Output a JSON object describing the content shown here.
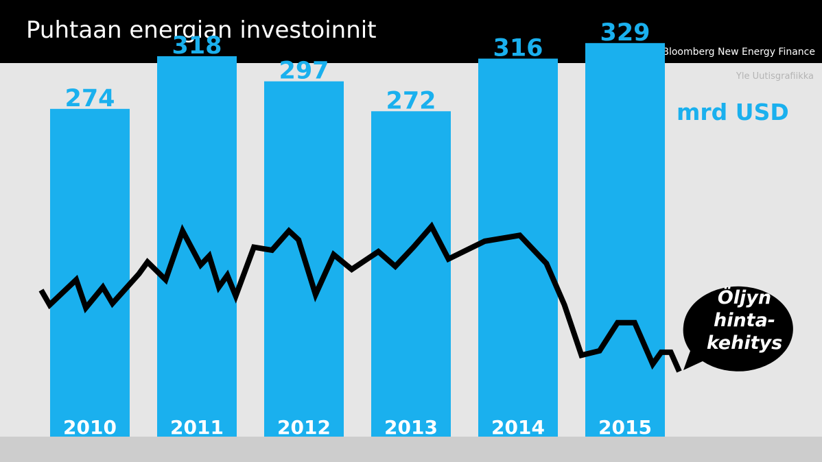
{
  "header": {
    "title": "Puhtaan energian investoinnit",
    "source": "Lähde: Bloomberg New Energy Finance"
  },
  "credit": "Yle Uutisgrafiikka",
  "colors": {
    "bar": "#1ab0ee",
    "header_bg": "#000000",
    "plot_bg": "#e6e6e6",
    "oil_line": "#000000"
  },
  "chart_data": {
    "type": "bar",
    "title": "Puhtaan energian investoinnit",
    "unit_label": "mrd USD",
    "categories": [
      "2010",
      "2011",
      "2012",
      "2013",
      "2014",
      "2015"
    ],
    "values": [
      274,
      318,
      297,
      272,
      316,
      329
    ],
    "data_labels": [
      "274",
      "318",
      "297",
      "272",
      "316",
      "329"
    ],
    "ylim": [
      0,
      365
    ],
    "grid": false,
    "overlay_line": {
      "label_lines": [
        "Öljyn",
        "hinta-",
        "kehitys"
      ],
      "x_range": [
        2010.0,
        2016.0
      ],
      "points": [
        [
          2010.0,
          0.55
        ],
        [
          2010.08,
          0.45
        ],
        [
          2010.33,
          0.62
        ],
        [
          2010.42,
          0.43
        ],
        [
          2010.58,
          0.57
        ],
        [
          2010.67,
          0.46
        ],
        [
          2010.92,
          0.66
        ],
        [
          2011.0,
          0.74
        ],
        [
          2011.17,
          0.62
        ],
        [
          2011.33,
          0.95
        ],
        [
          2011.5,
          0.72
        ],
        [
          2011.58,
          0.78
        ],
        [
          2011.67,
          0.57
        ],
        [
          2011.75,
          0.65
        ],
        [
          2011.83,
          0.51
        ],
        [
          2012.0,
          0.84
        ],
        [
          2012.17,
          0.82
        ],
        [
          2012.33,
          0.95
        ],
        [
          2012.42,
          0.89
        ],
        [
          2012.58,
          0.52
        ],
        [
          2012.75,
          0.79
        ],
        [
          2012.92,
          0.69
        ],
        [
          2013.17,
          0.81
        ],
        [
          2013.33,
          0.71
        ],
        [
          2013.5,
          0.84
        ],
        [
          2013.67,
          0.98
        ],
        [
          2013.83,
          0.76
        ],
        [
          2014.17,
          0.88
        ],
        [
          2014.5,
          0.92
        ],
        [
          2014.75,
          0.73
        ],
        [
          2014.92,
          0.45
        ],
        [
          2015.08,
          0.11
        ],
        [
          2015.25,
          0.14
        ],
        [
          2015.42,
          0.33
        ],
        [
          2015.58,
          0.33
        ],
        [
          2015.75,
          0.05
        ],
        [
          2015.83,
          0.13
        ],
        [
          2015.92,
          0.13
        ],
        [
          2016.0,
          0.0
        ]
      ]
    }
  }
}
